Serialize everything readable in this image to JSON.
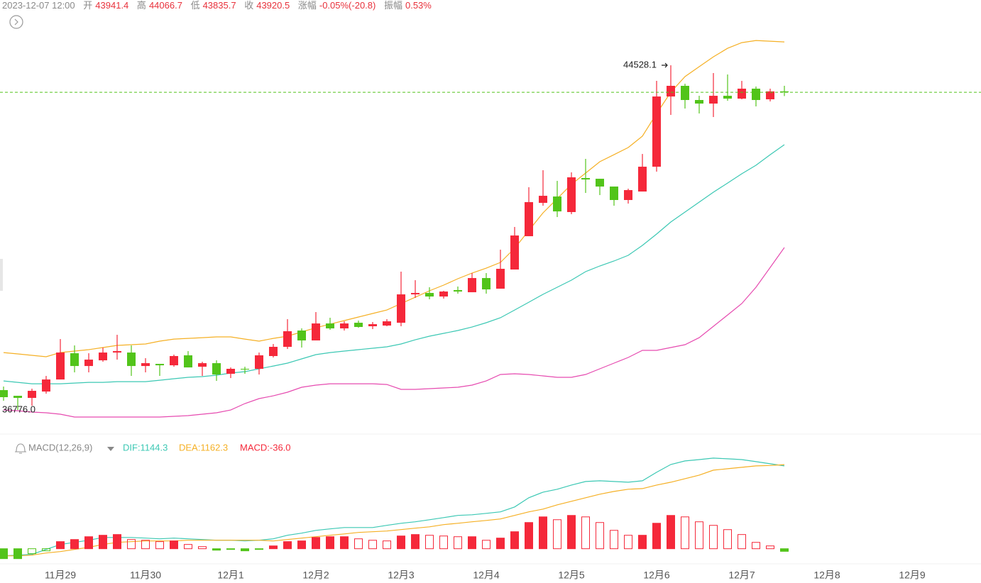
{
  "header": {
    "time": "2023-12-07 12:00",
    "open_label": "开",
    "high_label": "高",
    "low_label": "低",
    "close_label": "收",
    "change_label": "涨幅",
    "change": "-0.05%(-20.8)",
    "amplitude_label": "振幅",
    "amplitude": "0.53%"
  },
  "chart_data": [
    {
      "type": "candlestick",
      "up_color": "#f5283a",
      "down_color": "#52c41a",
      "last_line_color": "#52c41a",
      "xlim": [
        -0.25,
        68.85
      ],
      "ylim": [
        36426,
        45996
      ],
      "max_label": "44528.1",
      "min_label": "36776.0",
      "open": [
        37223,
        37095,
        37048,
        37191,
        37462,
        38052,
        37765,
        37893,
        38068,
        38068,
        37765,
        37813,
        37781,
        38005,
        37749,
        37829,
        37590,
        37702,
        37702,
        37989,
        38196,
        38563,
        38340,
        38722,
        38611,
        38738,
        38659,
        38675,
        38738,
        39376,
        39408,
        39328,
        39472,
        39424,
        39743,
        39504,
        39935,
        40684,
        41434,
        41577,
        41227,
        41992,
        41976,
        41801,
        41498,
        41689,
        42247,
        43826,
        44066,
        43747,
        43667,
        43842,
        43778,
        44002,
        43763,
        43941.4
      ],
      "high": [
        37303,
        37095,
        37255,
        37542,
        38371,
        38228,
        38052,
        38180,
        38467,
        38228,
        37941,
        37813,
        38021,
        38100,
        37861,
        37893,
        37733,
        37749,
        38068,
        38260,
        38818,
        38611,
        38978,
        38850,
        38770,
        38786,
        38754,
        38818,
        39887,
        39695,
        39536,
        39456,
        39552,
        39855,
        39855,
        40381,
        40892,
        41785,
        42168,
        41928,
        42120,
        42423,
        41976,
        41801,
        41753,
        42534,
        44177,
        44528.1,
        44113,
        43842,
        44353,
        44321,
        44177,
        44050,
        44002,
        44066.7
      ],
      "low": [
        36984,
        36776,
        36872,
        37143,
        37462,
        37622,
        37622,
        37861,
        37909,
        37542,
        37622,
        37542,
        37749,
        37733,
        37542,
        37430,
        37494,
        37590,
        37574,
        37957,
        38148,
        38180,
        38340,
        38579,
        38563,
        38627,
        38595,
        38659,
        38659,
        39297,
        39265,
        39281,
        39392,
        39424,
        39392,
        39504,
        39935,
        40684,
        41370,
        41115,
        41179,
        41657,
        41609,
        41370,
        41418,
        41689,
        42136,
        43412,
        43555,
        43444,
        43364,
        43731,
        43763,
        43603,
        43715,
        43835.7
      ],
      "close": [
        37064,
        37048,
        37207,
        37462,
        38068,
        37765,
        37909,
        38068,
        38100,
        37765,
        37829,
        37781,
        37989,
        37733,
        37829,
        37574,
        37702,
        37686,
        38005,
        38196,
        38547,
        38340,
        38722,
        38611,
        38722,
        38643,
        38706,
        38770,
        39376,
        39408,
        39328,
        39440,
        39440,
        39743,
        39488,
        39951,
        40700,
        41450,
        41593,
        41242,
        42008,
        41960,
        41801,
        41498,
        41721,
        42247,
        43826,
        44066,
        43747,
        43667,
        43842,
        43778,
        44002,
        43747,
        43941,
        43920.5
      ],
      "lines": [
        {
          "color": "#f5b025",
          "values": [
            38068,
            38037,
            38005,
            37973,
            38068,
            38100,
            38132,
            38180,
            38228,
            38244,
            38260,
            38324,
            38371,
            38387,
            38403,
            38419,
            38419,
            38371,
            38324,
            38387,
            38435,
            38531,
            38626,
            38706,
            38786,
            38866,
            38946,
            39025,
            39169,
            39312,
            39456,
            39584,
            39727,
            39855,
            39966,
            40094,
            40413,
            40812,
            41210,
            41529,
            41849,
            42104,
            42359,
            42518,
            42678,
            42933,
            43443,
            43922,
            44273,
            44496,
            44719,
            44910,
            45038,
            45086,
            45070,
            45054
          ]
        },
        {
          "color": "#3cc8b4",
          "values": [
            37430,
            37398,
            37366,
            37366,
            37366,
            37382,
            37398,
            37398,
            37414,
            37414,
            37414,
            37446,
            37478,
            37510,
            37526,
            37558,
            37606,
            37638,
            37702,
            37765,
            37829,
            37925,
            38021,
            38068,
            38100,
            38132,
            38164,
            38196,
            38260,
            38355,
            38435,
            38499,
            38563,
            38642,
            38738,
            38850,
            39025,
            39200,
            39376,
            39536,
            39695,
            39887,
            40014,
            40126,
            40254,
            40477,
            40732,
            41004,
            41227,
            41450,
            41673,
            41880,
            42088,
            42279,
            42518,
            42742
          ]
        },
        {
          "color": "#e64bb0",
          "values": [
            36776,
            36760,
            36729,
            36713,
            36681,
            36617,
            36617,
            36617,
            36617,
            36617,
            36617,
            36617,
            36633,
            36649,
            36681,
            36713,
            36776,
            36920,
            37032,
            37095,
            37175,
            37287,
            37335,
            37366,
            37366,
            37366,
            37366,
            37350,
            37239,
            37239,
            37255,
            37271,
            37287,
            37335,
            37430,
            37574,
            37590,
            37574,
            37542,
            37510,
            37510,
            37574,
            37702,
            37829,
            37957,
            38116,
            38116,
            38180,
            38244,
            38403,
            38658,
            38913,
            39169,
            39536,
            39982,
            40429
          ]
        }
      ]
    },
    {
      "type": "macd",
      "title": "MACD(12,26,9)",
      "xlim": [
        -0.25,
        68.85
      ],
      "ylim": [
        -160,
        1310
      ],
      "series": [
        {
          "name": "DIF:1144.3",
          "color": "#3cc8b4",
          "type": "line",
          "values": [
            -98,
            -88,
            -78,
            -10,
            59,
            88,
            117,
            156,
            156,
            156,
            147,
            137,
            147,
            137,
            127,
            117,
            117,
            108,
            117,
            137,
            186,
            215,
            254,
            274,
            293,
            293,
            293,
            323,
            352,
            372,
            401,
            430,
            460,
            469,
            489,
            509,
            577,
            704,
            782,
            822,
            880,
            929,
            939,
            929,
            919,
            939,
            1056,
            1164,
            1213,
            1232,
            1252,
            1242,
            1232,
            1203,
            1174,
            1144.3
          ]
        },
        {
          "name": "DEA:1162.3",
          "color": "#f5b025",
          "type": "line",
          "values": [
            -98,
            -98,
            -88,
            -59,
            -39,
            -10,
            20,
            59,
            88,
            98,
            108,
            108,
            108,
            117,
            117,
            117,
            117,
            117,
            117,
            108,
            127,
            147,
            166,
            186,
            205,
            225,
            235,
            245,
            264,
            284,
            303,
            333,
            352,
            372,
            391,
            411,
            460,
            509,
            548,
            606,
            655,
            704,
            753,
            792,
            822,
            831,
            880,
            919,
            968,
            1017,
            1086,
            1105,
            1125,
            1144,
            1150,
            1162.3
          ]
        },
        {
          "name": "MACD:-36.0",
          "color": "#f5283a",
          "negative_color": "#52c41a",
          "type": "bar",
          "values": [
            -137,
            -137,
            -68,
            -29,
            98,
            127,
            166,
            186,
            196,
            127,
            117,
            98,
            108,
            59,
            29,
            -20,
            -10,
            -29,
            -8,
            39,
            98,
            108,
            156,
            166,
            166,
            137,
            117,
            108,
            176,
            196,
            186,
            176,
            166,
            166,
            117,
            147,
            235,
            362,
            440,
            401,
            460,
            440,
            362,
            254,
            186,
            186,
            352,
            460,
            440,
            372,
            323,
            264,
            196,
            88,
            39,
            -36.0
          ]
        }
      ],
      "xticks": [
        {
          "value": 4,
          "label": "11月29"
        },
        {
          "value": 10,
          "label": "11月30"
        },
        {
          "value": 16,
          "label": "12月1"
        },
        {
          "value": 22,
          "label": "12月2"
        },
        {
          "value": 28,
          "label": "12月3"
        },
        {
          "value": 34,
          "label": "12月4"
        },
        {
          "value": 40,
          "label": "12月5"
        },
        {
          "value": 46,
          "label": "12月6"
        },
        {
          "value": 52,
          "label": "12月7"
        },
        {
          "value": 58,
          "label": "12月8"
        },
        {
          "value": 64,
          "label": "12月9"
        }
      ]
    }
  ]
}
